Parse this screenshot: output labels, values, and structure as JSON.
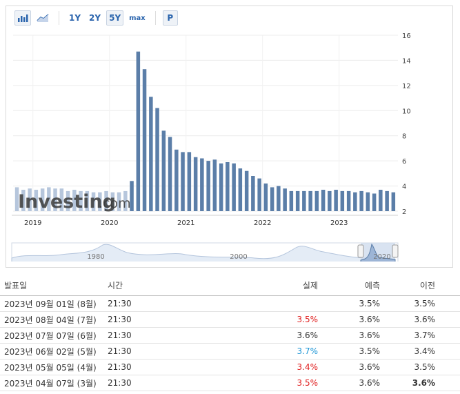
{
  "toolbar": {
    "bar_chart_icon": "bar-chart-icon",
    "line_chart_icon": "line-chart-icon",
    "ranges": [
      "1Y",
      "2Y",
      "5Y",
      "max"
    ],
    "active_range": "5Y",
    "p_label": "P"
  },
  "watermark": {
    "brand": "Investing",
    "suffix": ".com"
  },
  "chart_data": {
    "type": "bar",
    "y_ticks": [
      "16",
      "14",
      "12",
      "10",
      "8",
      "6",
      "4",
      "2"
    ],
    "ylim": [
      2,
      16
    ],
    "x_ticks": [
      "2019",
      "2020",
      "2021",
      "2022",
      "2023"
    ],
    "values": [
      3.9,
      3.7,
      3.8,
      3.7,
      3.8,
      3.9,
      3.8,
      3.8,
      3.6,
      3.7,
      3.6,
      3.6,
      3.5,
      3.5,
      3.6,
      3.5,
      3.5,
      3.6,
      4.4,
      14.7,
      13.3,
      11.1,
      10.2,
      8.4,
      7.9,
      6.9,
      6.7,
      6.7,
      6.3,
      6.2,
      6.0,
      6.1,
      5.8,
      5.9,
      5.8,
      5.4,
      5.2,
      4.8,
      4.6,
      4.2,
      3.9,
      4.0,
      3.8,
      3.6,
      3.6,
      3.6,
      3.6,
      3.6,
      3.7,
      3.6,
      3.7,
      3.6,
      3.6,
      3.5,
      3.6,
      3.5,
      3.4,
      3.7,
      3.6,
      3.5
    ],
    "shaded_count": 18,
    "grid": true,
    "colors": {
      "bar": "#5b7ea8",
      "bar_light": "#b6c6dc"
    }
  },
  "navigator": {
    "labels": [
      "1980",
      "2000",
      "2020"
    ]
  },
  "table": {
    "headers": [
      "발표일",
      "시간",
      "실제",
      "예측",
      "이전"
    ],
    "rows": [
      {
        "date": "2023년 09월 01일 (8월)",
        "time": "21:30",
        "actual": "",
        "actual_color": "",
        "forecast": "3.5%",
        "previous": "3.5%",
        "prev_bold": false
      },
      {
        "date": "2023년 08월 04일 (7월)",
        "time": "21:30",
        "actual": "3.5%",
        "actual_color": "red",
        "forecast": "3.6%",
        "previous": "3.6%",
        "prev_bold": false
      },
      {
        "date": "2023년 07월 07일 (6월)",
        "time": "21:30",
        "actual": "3.6%",
        "actual_color": "",
        "forecast": "3.6%",
        "previous": "3.7%",
        "prev_bold": false
      },
      {
        "date": "2023년 06월 02일 (5월)",
        "time": "21:30",
        "actual": "3.7%",
        "actual_color": "blue",
        "forecast": "3.5%",
        "previous": "3.4%",
        "prev_bold": false
      },
      {
        "date": "2023년 05월 05일 (4월)",
        "time": "21:30",
        "actual": "3.4%",
        "actual_color": "red",
        "forecast": "3.6%",
        "previous": "3.5%",
        "prev_bold": false
      },
      {
        "date": "2023년 04월 07일 (3월)",
        "time": "21:30",
        "actual": "3.5%",
        "actual_color": "red",
        "forecast": "3.6%",
        "previous": "3.6%",
        "prev_bold": true
      }
    ]
  }
}
